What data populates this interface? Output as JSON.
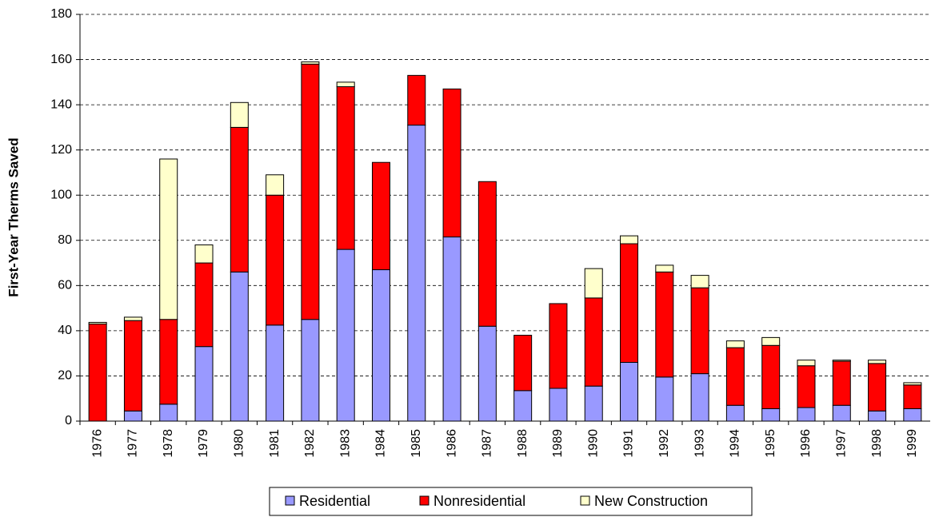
{
  "chart_data": {
    "type": "stacked-bar",
    "y_label": "First-Year Therms Saved",
    "categories": [
      "1976",
      "1977",
      "1978",
      "1979",
      "1980",
      "1981",
      "1982",
      "1983",
      "1984",
      "1985",
      "1986",
      "1987",
      "1988",
      "1989",
      "1990",
      "1991",
      "1992",
      "1993",
      "1994",
      "1995",
      "1996",
      "1997",
      "1998",
      "1999"
    ],
    "series": [
      {
        "name": "Residential",
        "color": "#9999ff",
        "values": [
          0,
          4.5,
          7.5,
          33,
          66,
          42.5,
          45,
          76,
          67,
          131,
          81.5,
          42,
          13.5,
          14.5,
          15.5,
          26,
          19.5,
          21,
          7,
          5.5,
          6,
          7,
          4.5,
          5.5
        ]
      },
      {
        "name": "Nonresidential",
        "color": "#ff0000",
        "values": [
          43,
          40,
          37.5,
          37,
          64,
          57.5,
          113,
          72,
          47.5,
          22,
          65.5,
          64,
          24.5,
          37.5,
          39,
          52.5,
          46.5,
          38,
          25.5,
          28,
          18.5,
          19.5,
          21,
          10.5
        ]
      },
      {
        "name": "New Construction",
        "color": "#ffffcc",
        "values": [
          0.7,
          1.5,
          71,
          8,
          11,
          9,
          1,
          2,
          0,
          0,
          0,
          0,
          0,
          0,
          13,
          3.5,
          3,
          5.5,
          3,
          3.5,
          2.5,
          0.5,
          1.5,
          1
        ]
      }
    ],
    "ylim": [
      0,
      180
    ],
    "yticks": [
      0,
      20,
      40,
      60,
      80,
      100,
      120,
      140,
      160,
      180
    ],
    "grid": true,
    "legend": "bottom"
  }
}
